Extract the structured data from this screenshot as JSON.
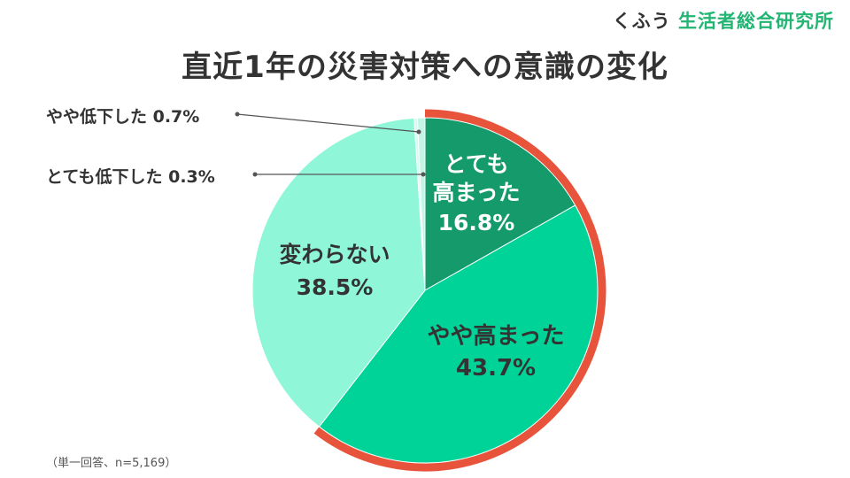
{
  "brand": {
    "prefix": "くふう",
    "name": "生活者総合研究所"
  },
  "chart_data": {
    "type": "pie",
    "title": "直近1年の災害対策への意識の変化",
    "categories": [
      "とても高まった",
      "やや高まった",
      "変わらない",
      "とても低下した",
      "やや低下した"
    ],
    "values": [
      16.8,
      43.7,
      38.5,
      0.3,
      0.7
    ],
    "value_labels": [
      "16.8%",
      "43.7%",
      "38.5%",
      "0.3%",
      "0.7%"
    ],
    "colors": [
      "#159a6c",
      "#00d398",
      "#8ff7d8",
      "#d8fbf0",
      "#c3f4e5"
    ],
    "highlight": {
      "categories": [
        "とても高まった",
        "やや高まった"
      ],
      "color": "#e8543b"
    },
    "start_angle": "12 o'clock",
    "direction": "clockwise",
    "legend": "none"
  },
  "labels": {
    "slice_very_high": {
      "line1": "とても",
      "line2": "高まった",
      "value": "16.8%"
    },
    "slice_somewhat_high": {
      "line1": "やや高まった",
      "value": "43.7%"
    },
    "slice_unchanged": {
      "line1": "変わらない",
      "value": "38.5%"
    },
    "callout_very_low": "とても低下した 0.3%",
    "callout_somewhat_low": "やや低下した 0.7%"
  },
  "footnote": "（単一回答、n=5,169）"
}
